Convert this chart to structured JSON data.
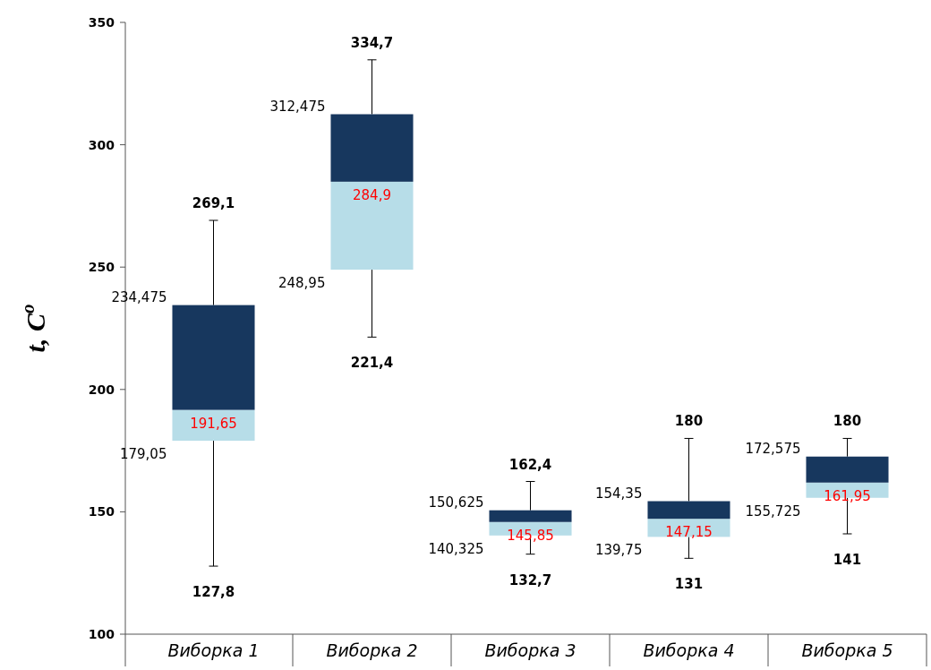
{
  "chart_data": {
    "type": "box",
    "ylabel": "t, C$^{o}$",
    "categories": [
      "Виборка 1",
      "Виборка 2",
      "Виборка 3",
      "Виборка 4",
      "Виборка 5"
    ],
    "boxes": [
      {
        "low": 127.8,
        "q1": 179.05,
        "median": 191.65,
        "q3": 234.475,
        "high": 269.1
      },
      {
        "low": 221.4,
        "q1": 248.95,
        "median": 284.9,
        "q3": 312.475,
        "high": 334.7
      },
      {
        "low": 132.7,
        "q1": 140.325,
        "median": 145.85,
        "q3": 150.625,
        "high": 162.4
      },
      {
        "low": 131,
        "q1": 139.75,
        "median": 147.15,
        "q3": 154.35,
        "high": 180
      },
      {
        "low": 141,
        "q1": 155.725,
        "median": 161.95,
        "q3": 172.575,
        "high": 180
      }
    ],
    "colors": [
      "#b7dde8",
      "#b7dde8",
      "#b7dde8",
      "#b7dde8",
      "#b7dde8"
    ],
    "color": "#17375e",
    "ylim": [
      100,
      350
    ],
    "yticks": [
      100,
      150,
      200,
      250,
      300,
      350
    ],
    "grid": false,
    "annotations": [
      {
        "text": "269,1",
        "x": "Виборка 1",
        "y": 269.1
      },
      "234,475",
      {
        "text": "191,65",
        "x": "Виборка 1",
        "y": 191.65
      },
      "179,05",
      {
        "text": "127,8",
        "x": "Виборка 1",
        "y": 127.8
      },
      {
        "text": "334,7",
        "x": "Виборка 2",
        "y": 334.7
      },
      "312,475",
      {
        "text": "284,9",
        "x": "Виборка 2",
        "y": 284.9
      },
      "248,95",
      {
        "text": "221,4",
        "x": "Виборка 2",
        "y": 221.4
      },
      {
        "text": "162,4",
        "x": "Виборка 3",
        "y": 162.4
      },
      "150,625",
      {
        "text": "145,85",
        "x": "Виборка 3",
        "y": 145.85
      },
      "140,325",
      {
        "text": "132,7",
        "x": "Виборка 3",
        "y": 132.7
      },
      {
        "text": "180",
        "x": "Виборка 4",
        "y": 180
      },
      "154,35",
      {
        "text": "147,15",
        "x": "Виборка 4",
        "y": 147.15
      },
      "139,75",
      {
        "text": "131",
        "x": "Виборка 4",
        "y": 131
      },
      {
        "text": "180",
        "x": "Виборка 5",
        "y": 180
      },
      "172,575",
      {
        "text": "161,95",
        "x": "Виборка 5",
        "y": 161.95
      },
      "155,725",
      {
        "text": "141",
        "x": "Виборка 5",
        "y": 141
      }
    ]
  }
}
